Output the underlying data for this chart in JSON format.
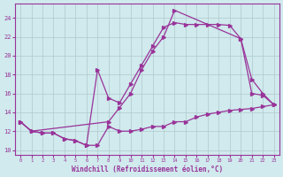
{
  "background_color": "#d0eaed",
  "line_color": "#993399",
  "grid_color": "#b0c8cc",
  "xlabel": "Windchill (Refroidissement éolien,°C)",
  "yticks": [
    10,
    12,
    14,
    16,
    18,
    20,
    22,
    24
  ],
  "xticks": [
    0,
    1,
    2,
    3,
    4,
    5,
    6,
    7,
    8,
    9,
    10,
    11,
    12,
    13,
    14,
    15,
    16,
    17,
    18,
    19,
    20,
    21,
    22,
    23
  ],
  "xlim": [
    -0.5,
    23.5
  ],
  "ylim": [
    9.5,
    25.5
  ],
  "line1_x": [
    0,
    1,
    2,
    3,
    4,
    5,
    6,
    7,
    8,
    9,
    10,
    11,
    12,
    13,
    14,
    15,
    16,
    17,
    18,
    19,
    20,
    21,
    22,
    23
  ],
  "line1_y": [
    13.0,
    12.0,
    11.8,
    11.8,
    11.2,
    11.0,
    10.5,
    10.5,
    12.5,
    12.0,
    12.0,
    12.2,
    12.5,
    12.5,
    13.0,
    13.0,
    13.5,
    13.8,
    14.0,
    14.2,
    14.3,
    14.4,
    14.6,
    14.8
  ],
  "line2_x": [
    0,
    1,
    2,
    3,
    4,
    5,
    6,
    7,
    8,
    9,
    10,
    11,
    12,
    13,
    14,
    15,
    16,
    17,
    18,
    19,
    20,
    21,
    22,
    23
  ],
  "line2_y": [
    13.0,
    12.0,
    11.8,
    11.8,
    11.2,
    11.0,
    10.5,
    18.5,
    15.5,
    15.0,
    17.0,
    19.0,
    21.0,
    23.0,
    23.5,
    23.3,
    23.3,
    23.3,
    23.3,
    23.2,
    21.8,
    16.0,
    15.8,
    14.8
  ],
  "line3_x": [
    0,
    1,
    8,
    9,
    10,
    11,
    12,
    13,
    14,
    20,
    21,
    22,
    23
  ],
  "line3_y": [
    13.0,
    12.0,
    13.0,
    14.5,
    16.0,
    18.5,
    20.5,
    22.0,
    24.8,
    21.8,
    17.5,
    16.0,
    14.8
  ]
}
